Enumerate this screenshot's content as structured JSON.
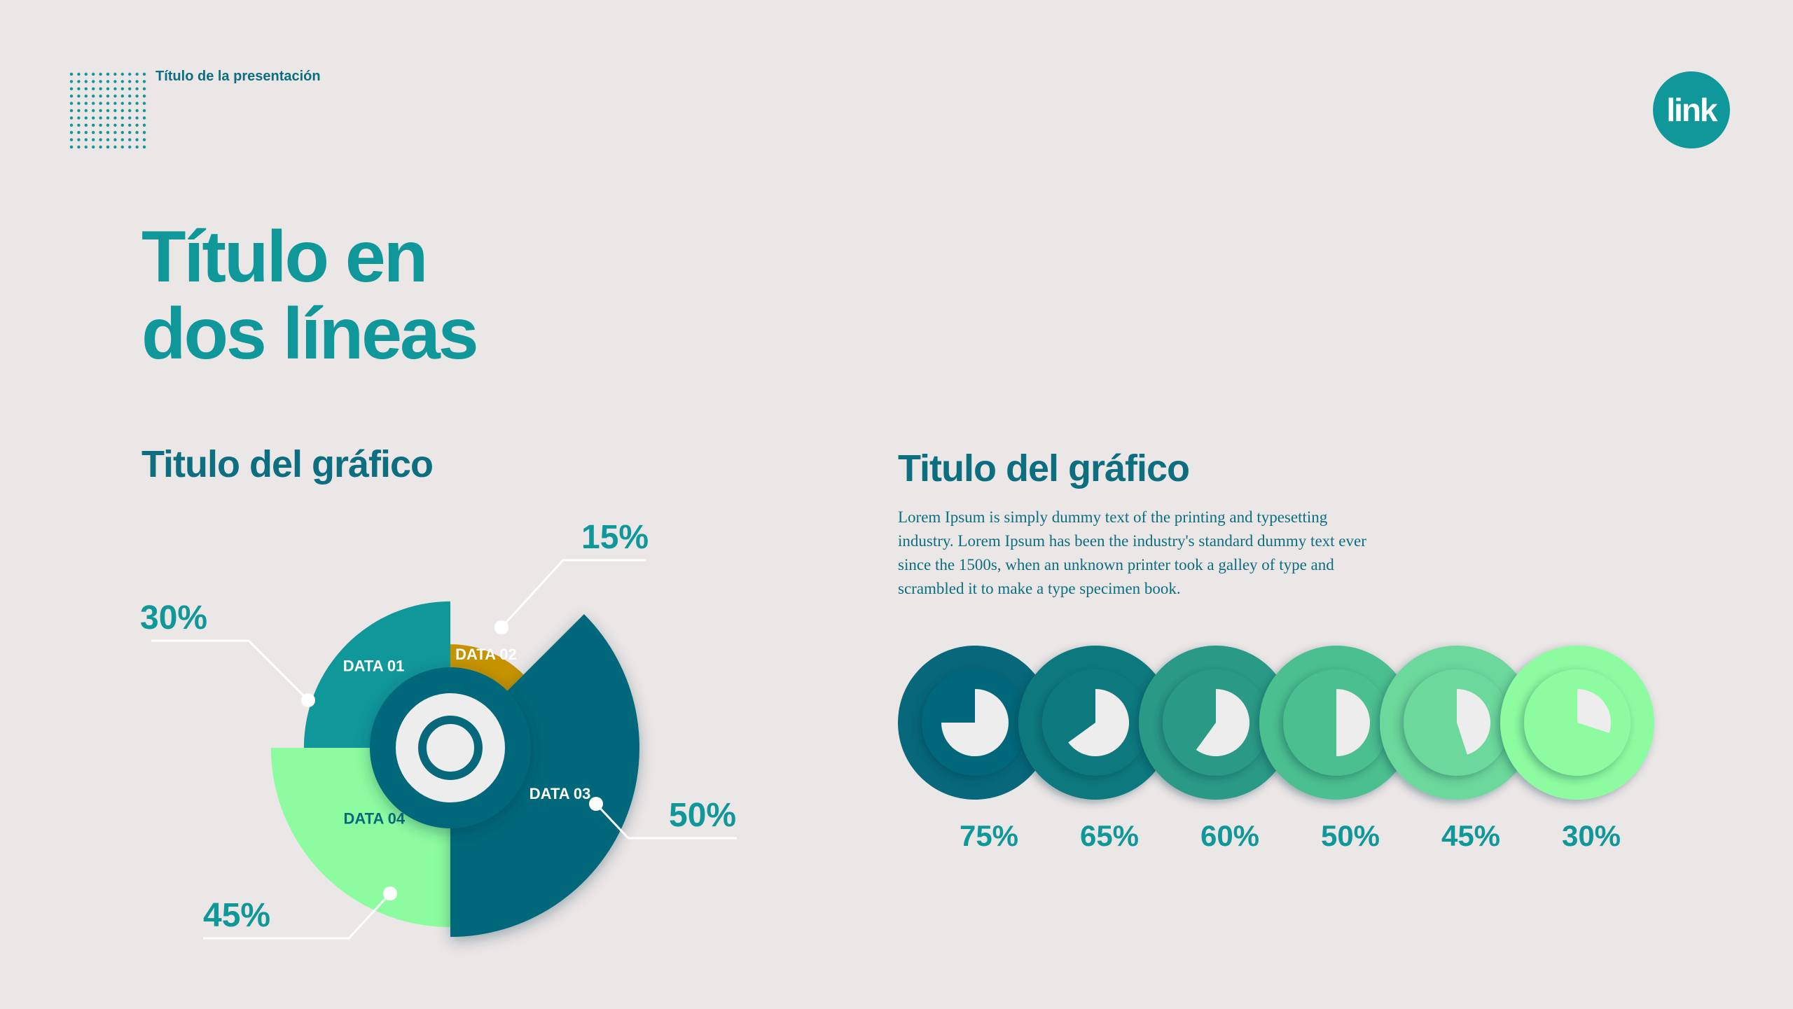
{
  "header": {
    "presentation_title": "Título de la presentación",
    "logo_text": "link"
  },
  "main": {
    "title_line1": "Título en",
    "title_line2": "dos líneas"
  },
  "colors": {
    "background": "#ECE7E7",
    "teal": "#10979A",
    "dark_teal": "#0C6E7F",
    "deep_teal": "#06687A",
    "gold": "#C69300",
    "mint": "#8DFCA0",
    "white": "#EDEDED"
  },
  "chart_data": [
    {
      "type": "pie",
      "title": "Titulo del gráfico",
      "slices": [
        {
          "label": "DATA 01",
          "value": 30,
          "display": "30%",
          "color": "#10979A"
        },
        {
          "label": "DATA 02",
          "value": 15,
          "display": "15%",
          "color": "#C69300"
        },
        {
          "label": "DATA 03",
          "value": 50,
          "display": "50%",
          "color": "#06687A"
        },
        {
          "label": "DATA 04",
          "value": 45,
          "display": "45%",
          "color": "#8DFCA0"
        }
      ]
    },
    {
      "type": "pie",
      "title": "Titulo del gráfico",
      "description": "Lorem Ipsum is simply dummy text of the printing and typesetting industry. Lorem Ipsum has been the industry's standard dummy text ever since the 1500s, when an unknown printer took a galley of type and scrambled it to make a type specimen book.",
      "items": [
        {
          "value": 75,
          "display": "75%",
          "color": "#06687A"
        },
        {
          "value": 65,
          "display": "65%",
          "color": "#10797E"
        },
        {
          "value": 60,
          "display": "60%",
          "color": "#2A9A86"
        },
        {
          "value": 50,
          "display": "50%",
          "color": "#4CBF8F"
        },
        {
          "value": 45,
          "display": "45%",
          "color": "#6CD89B"
        },
        {
          "value": 30,
          "display": "30%",
          "color": "#8DFCA0"
        }
      ]
    }
  ]
}
